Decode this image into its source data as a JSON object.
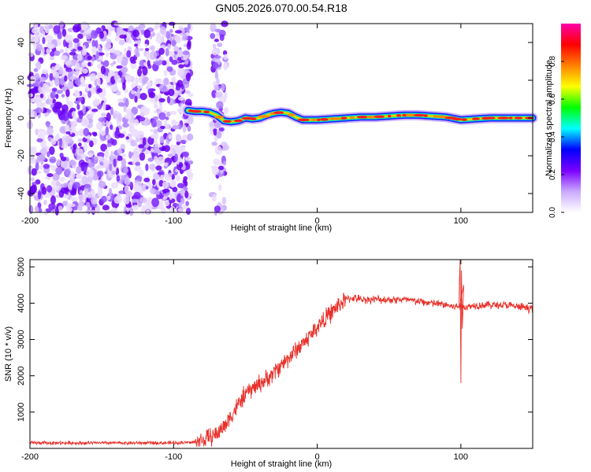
{
  "figure_title": "GN05.2026.070.00.54.R18",
  "chart_data": [
    {
      "type": "heatmap",
      "title": "GN05.2026.070.00.54.R18",
      "xlabel": "Height of straight line (km)",
      "ylabel": "Frequency (Hz)",
      "xlim": [
        -200,
        150
      ],
      "ylim": [
        -50,
        50
      ],
      "x_ticks": [
        -200,
        -100,
        0,
        100
      ],
      "y_ticks": [
        -40,
        -20,
        0,
        20,
        40
      ],
      "colorbar": {
        "label": "Normalized spectral amplitude",
        "range": [
          0,
          1
        ],
        "ticks": [
          "0.0",
          "0.2",
          "0.4",
          "0.6",
          "0.8"
        ],
        "colors": [
          "#ffffff",
          "#c9a9ff",
          "#7a00ff",
          "#0000ff",
          "#00ffff",
          "#00ff00",
          "#ffff00",
          "#ff8000",
          "#ff0000",
          "#ff00aa"
        ]
      },
      "noise_region_x": [
        -200,
        -88
      ],
      "secondary_noise_x": [
        -73,
        -63
      ],
      "signal_track": {
        "x": [
          -90,
          -85,
          -80,
          -75,
          -70,
          -65,
          -60,
          -55,
          -50,
          -45,
          -40,
          -35,
          -30,
          -25,
          -20,
          -15,
          -10,
          -5,
          0,
          10,
          20,
          30,
          40,
          50,
          60,
          70,
          80,
          90,
          100,
          110,
          120,
          130,
          140,
          150
        ],
        "freq": [
          4,
          3.5,
          3.5,
          3,
          1.5,
          -1.5,
          -2,
          -1.5,
          0,
          -0.5,
          0,
          1.5,
          2.5,
          3,
          2.5,
          0.5,
          -1,
          -1,
          -1,
          -0.5,
          0,
          0.5,
          0.5,
          1,
          1.5,
          1.5,
          1,
          0.5,
          -1,
          -0.5,
          0,
          0,
          0,
          0
        ]
      }
    },
    {
      "type": "line",
      "xlabel": "Height of straight line (km)",
      "ylabel": "SNR (10 * v/v)",
      "xlim": [
        -200,
        150
      ],
      "ylim": [
        0,
        5200
      ],
      "x_ticks": [
        -200,
        -100,
        0,
        100
      ],
      "y_ticks": [
        1000,
        2000,
        3000,
        4000,
        5000
      ],
      "series": [
        {
          "name": "SNR",
          "color": "#e8302a",
          "x": [
            -200,
            -150,
            -100,
            -85,
            -80,
            -75,
            -70,
            -65,
            -60,
            -55,
            -50,
            -45,
            -40,
            -35,
            -30,
            -25,
            -20,
            -15,
            -10,
            -5,
            0,
            5,
            10,
            15,
            20,
            25,
            30,
            40,
            50,
            60,
            70,
            80,
            90,
            95,
            100,
            105,
            110,
            120,
            130,
            140,
            150
          ],
          "values": [
            150,
            150,
            150,
            170,
            220,
            300,
            400,
            600,
            900,
            1200,
            1500,
            1650,
            1800,
            1900,
            2100,
            2300,
            2500,
            2700,
            2900,
            3100,
            3350,
            3550,
            3750,
            3950,
            4100,
            4150,
            4100,
            4100,
            4100,
            4100,
            4050,
            4000,
            3950,
            3900,
            3900,
            3900,
            3950,
            3950,
            3950,
            3900,
            3850
          ]
        }
      ],
      "annotations": [
        {
          "x": 100,
          "spike_high": 5200,
          "spike_low": 1800
        }
      ]
    }
  ]
}
